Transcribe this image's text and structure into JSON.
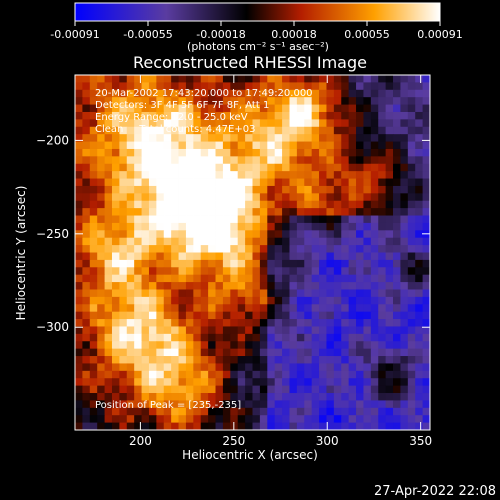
{
  "chart_data": {
    "type": "heatmap",
    "title": "Reconstructed RHESSI Image",
    "xlabel": "Heliocentric X (arcsec)",
    "ylabel": "Heliocentric Y (arcsec)",
    "xlim": [
      165,
      355
    ],
    "ylim": [
      -355,
      -165
    ],
    "x_ticks": [
      200,
      250,
      300,
      350
    ],
    "y_ticks": [
      -200,
      -250,
      -300
    ],
    "colorbar": {
      "ticks": [
        "-0.00091",
        "-0.00055",
        "-0.00018",
        "0.00018",
        "0.00055",
        "0.00091"
      ],
      "range": [
        -0.00091,
        0.00091
      ],
      "unit_text": "(photons cm⁻² s⁻¹ asec⁻²)"
    },
    "annotations": [
      "20-Mar-2002 17:43:20.000 to 17:49:20.000",
      "Detectors: 3F 4F 5F 6F 7F 8F, Att 1",
      "Energy Range: 12.0 - 25.0 keV",
      "Clean     Total counts: 4.47E+03"
    ],
    "peak_label": "Position of Peak = [235,-235]",
    "peak": [
      235,
      -235
    ]
  },
  "footer": {
    "timestamp": "27-Apr-2022 22:08"
  },
  "colors": {
    "background": "#000000",
    "scale": [
      "#0000ff",
      "#5a3ca0",
      "#000000",
      "#b41e00",
      "#ffa000",
      "#ffffff"
    ]
  }
}
